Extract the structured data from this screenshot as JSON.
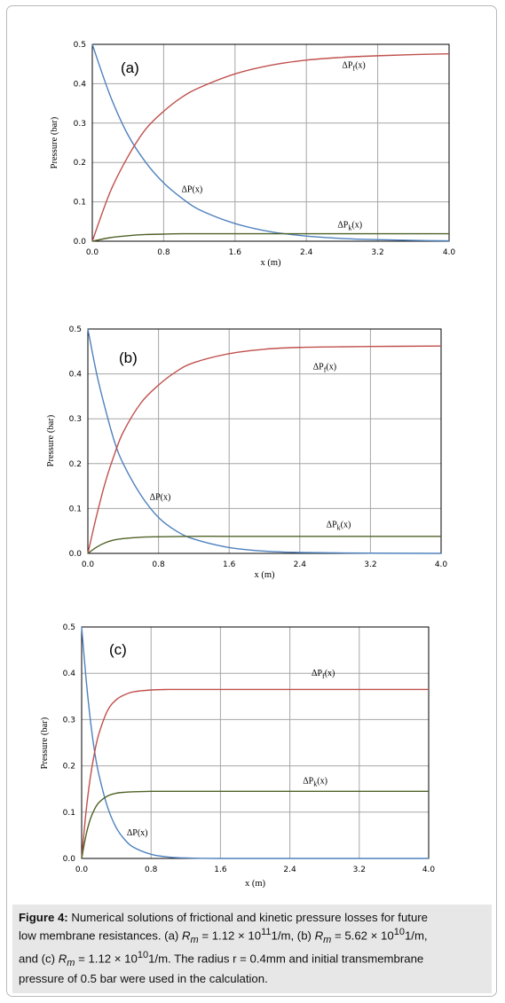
{
  "colors": {
    "red": "#c0504d",
    "blue": "#4f81bd",
    "green": "#4f6228",
    "grid": "#a6a6a6",
    "frame": "#000000"
  },
  "chart_data": [
    {
      "type": "line",
      "panel_label": "(a)",
      "xlabel": "x (m)",
      "ylabel": "Pressure (bar)",
      "xlim": [
        0,
        4.0
      ],
      "ylim": [
        0,
        0.5
      ],
      "x_ticks": [
        "0.0",
        "0.8",
        "1.6",
        "2.4",
        "3.2",
        "4.0"
      ],
      "y_ticks": [
        "0.0",
        "0.1",
        "0.2",
        "0.3",
        "0.4",
        "0.5"
      ],
      "grid": true,
      "series": [
        {
          "name": "ΔP(x)",
          "color": "#4f81bd",
          "x": [
            0,
            0.2,
            0.4,
            0.6,
            0.8,
            1.0,
            1.2,
            1.6,
            2.0,
            2.4,
            2.8,
            3.2,
            3.6,
            4.0
          ],
          "y": [
            0.5,
            0.37,
            0.27,
            0.2,
            0.148,
            0.11,
            0.08,
            0.045,
            0.024,
            0.013,
            0.007,
            0.004,
            0.002,
            0.001
          ]
        },
        {
          "name": "ΔPf(x)",
          "color": "#c0504d",
          "x": [
            0,
            0.2,
            0.4,
            0.6,
            0.8,
            1.0,
            1.2,
            1.6,
            2.0,
            2.4,
            2.8,
            3.2,
            3.6,
            4.0
          ],
          "y": [
            0,
            0.125,
            0.215,
            0.285,
            0.33,
            0.365,
            0.39,
            0.425,
            0.447,
            0.46,
            0.467,
            0.471,
            0.474,
            0.476
          ]
        },
        {
          "name": "ΔPk(x)",
          "color": "#4f6228",
          "x": [
            0,
            0.2,
            0.4,
            0.6,
            0.8,
            1.0,
            1.6,
            2.4,
            3.2,
            4.0
          ],
          "y": [
            0,
            0.009,
            0.014,
            0.017,
            0.018,
            0.019,
            0.019,
            0.019,
            0.019,
            0.019
          ]
        }
      ],
      "annotations": [
        {
          "text": "ΔPf(x)",
          "x": 2.8,
          "y": 0.44
        },
        {
          "text": "ΔP(x)",
          "x": 1.0,
          "y": 0.125
        },
        {
          "text": "ΔPk(x)",
          "x": 2.75,
          "y": 0.035
        }
      ]
    },
    {
      "type": "line",
      "panel_label": "(b)",
      "xlabel": "x (m)",
      "ylabel": "Pressure (bar)",
      "xlim": [
        0,
        4.0
      ],
      "ylim": [
        0,
        0.5
      ],
      "x_ticks": [
        "0.0",
        "0.8",
        "1.6",
        "2.4",
        "3.2",
        "4.0"
      ],
      "y_ticks": [
        "0.0",
        "0.1",
        "0.2",
        "0.3",
        "0.4",
        "0.5"
      ],
      "grid": true,
      "series": [
        {
          "name": "ΔP(x)",
          "color": "#4f81bd",
          "x": [
            0,
            0.1,
            0.2,
            0.3,
            0.4,
            0.6,
            0.8,
            1.0,
            1.2,
            1.6,
            2.0,
            2.4,
            3.2,
            4.0
          ],
          "y": [
            0.5,
            0.4,
            0.32,
            0.25,
            0.2,
            0.13,
            0.08,
            0.05,
            0.032,
            0.013,
            0.005,
            0.002,
            0.0005,
            0.0
          ]
        },
        {
          "name": "ΔPf(x)",
          "color": "#c0504d",
          "x": [
            0,
            0.1,
            0.2,
            0.3,
            0.4,
            0.6,
            0.8,
            1.0,
            1.2,
            1.6,
            2.0,
            2.4,
            3.2,
            4.0
          ],
          "y": [
            0,
            0.085,
            0.16,
            0.22,
            0.27,
            0.335,
            0.375,
            0.405,
            0.425,
            0.445,
            0.455,
            0.459,
            0.461,
            0.462
          ]
        },
        {
          "name": "ΔPk(x)",
          "color": "#4f6228",
          "x": [
            0,
            0.1,
            0.2,
            0.3,
            0.4,
            0.6,
            0.8,
            1.2,
            1.6,
            2.4,
            3.2,
            4.0
          ],
          "y": [
            0,
            0.014,
            0.024,
            0.03,
            0.033,
            0.036,
            0.037,
            0.038,
            0.038,
            0.038,
            0.038,
            0.038
          ]
        }
      ],
      "annotations": [
        {
          "text": "ΔPf(x)",
          "x": 2.55,
          "y": 0.41
        },
        {
          "text": "ΔP(x)",
          "x": 0.7,
          "y": 0.12
        },
        {
          "text": "ΔPk(x)",
          "x": 2.7,
          "y": 0.058
        }
      ]
    },
    {
      "type": "line",
      "panel_label": "(c)",
      "xlabel": "x (m)",
      "ylabel": "Pressure (bar)",
      "xlim": [
        0,
        4.0
      ],
      "ylim": [
        0,
        0.5
      ],
      "x_ticks": [
        "0.0",
        "0.8",
        "1.6",
        "2.4",
        "3.2",
        "4.0"
      ],
      "y_ticks": [
        "0.0",
        "0.1",
        "0.2",
        "0.3",
        "0.4",
        "0.5"
      ],
      "grid": true,
      "series": [
        {
          "name": "ΔP(x)",
          "color": "#4f81bd",
          "x": [
            0,
            0.05,
            0.1,
            0.15,
            0.2,
            0.3,
            0.4,
            0.5,
            0.6,
            0.8,
            1.0,
            1.2,
            1.6,
            2.4,
            4.0
          ],
          "y": [
            0.5,
            0.39,
            0.3,
            0.23,
            0.18,
            0.11,
            0.066,
            0.04,
            0.024,
            0.009,
            0.003,
            0.001,
            0.0,
            0.0,
            0.0
          ]
        },
        {
          "name": "ΔPf(x)",
          "color": "#c0504d",
          "x": [
            0,
            0.05,
            0.1,
            0.15,
            0.2,
            0.3,
            0.4,
            0.5,
            0.6,
            0.8,
            1.0,
            1.2,
            1.6,
            2.4,
            4.0
          ],
          "y": [
            0,
            0.1,
            0.175,
            0.23,
            0.27,
            0.32,
            0.343,
            0.354,
            0.36,
            0.364,
            0.365,
            0.365,
            0.365,
            0.365,
            0.365
          ]
        },
        {
          "name": "ΔPk(x)",
          "color": "#4f6228",
          "x": [
            0,
            0.05,
            0.1,
            0.15,
            0.2,
            0.3,
            0.4,
            0.5,
            0.6,
            0.8,
            1.0,
            1.6,
            2.4,
            4.0
          ],
          "y": [
            0,
            0.05,
            0.085,
            0.107,
            0.121,
            0.135,
            0.141,
            0.143,
            0.144,
            0.145,
            0.145,
            0.145,
            0.145,
            0.145
          ]
        }
      ],
      "annotations": [
        {
          "text": "ΔPf(x)",
          "x": 2.65,
          "y": 0.395
        },
        {
          "text": "ΔPk(x)",
          "x": 2.55,
          "y": 0.162
        },
        {
          "text": "ΔP(x)",
          "x": 0.52,
          "y": 0.05
        }
      ]
    }
  ],
  "caption": {
    "figure_label": "Figure 4:",
    "line1": " Numerical solutions of frictional and kinetic pressure losses for future",
    "line2_a": "low membrane resistances. (a) ",
    "line2_b": " = 1.12 × 10",
    "line2_c": "1/m, (b) ",
    "line2_d": " = 5.62 × 10",
    "line2_e": "1/m,",
    "line3_a": "and (c) ",
    "line3_b": " = 1.12 × 10",
    "line3_c": "1/m.  The radius r = 0.4mm and initial transmembrane",
    "line4": "pressure of 0.5 bar were used in the calculation.",
    "rm_symbol": "R",
    "rm_sub": "m",
    "exp_11": "11",
    "exp_10": "10"
  }
}
